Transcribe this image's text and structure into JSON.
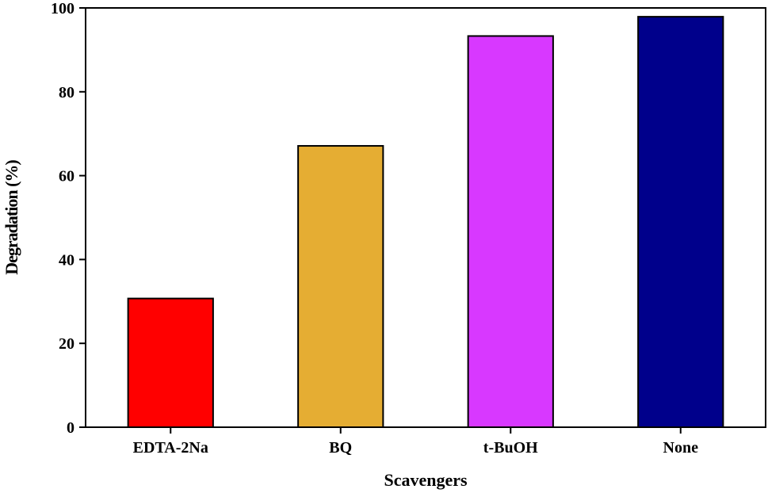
{
  "chart_data": {
    "type": "bar",
    "title": "",
    "xlabel": "Scavengers",
    "ylabel": "Degradation (%)",
    "categories": [
      "EDTA-2Na",
      "BQ",
      "t-BuOH",
      "None"
    ],
    "values": [
      30.7,
      67.1,
      93.3,
      97.9
    ],
    "colors": [
      "#ff0000",
      "#e5ad33",
      "#d838ff",
      "#00008b"
    ],
    "ylim": [
      0,
      100
    ],
    "yticks": [
      0,
      20,
      40,
      60,
      80,
      100
    ],
    "grid": false,
    "legend": "none"
  }
}
